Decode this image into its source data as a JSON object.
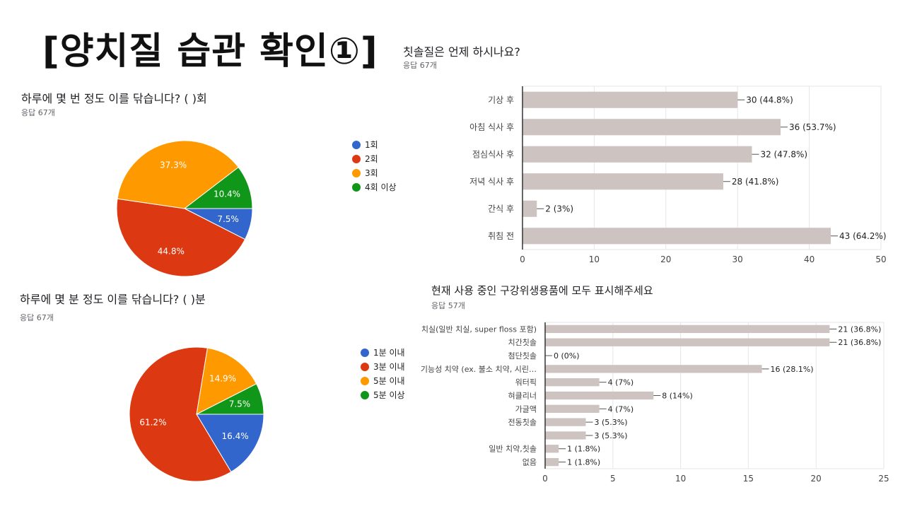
{
  "page_title": "[양치질 습관 확인①]",
  "chart_data": [
    {
      "type": "pie",
      "title": "하루에 몇 번 정도 이를 닦습니다? ( )회",
      "subtitle": "응답 67개",
      "categories": [
        "1회",
        "2회",
        "3회",
        "4회 이상"
      ],
      "values": [
        7.5,
        44.8,
        37.3,
        10.4
      ],
      "labels": [
        "7.5%",
        "44.8%",
        "37.3%",
        "10.4%"
      ],
      "colors": [
        "#3366cc",
        "#dc3912",
        "#ff9900",
        "#109618"
      ],
      "legend": "right"
    },
    {
      "type": "pie",
      "title": "하루에 몇 분 정도 이를 닦습니다? ( )분",
      "subtitle": "응답 67개",
      "categories": [
        "1분 이내",
        "3분 이내",
        "5분 이내",
        "5분 이상"
      ],
      "values": [
        16.4,
        61.2,
        14.9,
        7.5
      ],
      "labels": [
        "16.4%",
        "61.2%",
        "14.9%",
        "7.5%"
      ],
      "colors": [
        "#3366cc",
        "#dc3912",
        "#ff9900",
        "#109618"
      ],
      "legend": "right"
    },
    {
      "type": "bar",
      "orientation": "horizontal",
      "title": "칫솔질은 언제 하시나요?",
      "subtitle": "응답 67개",
      "categories": [
        "기상 후",
        "아침 식사 후",
        "점심식사 후",
        "저녁 식사 후",
        "간식 후",
        "취침 전"
      ],
      "values": [
        30,
        36,
        32,
        28,
        2,
        43
      ],
      "labels": [
        "30 (44.8%)",
        "36 (53.7%)",
        "32 (47.8%)",
        "28 (41.8%)",
        "2 (3%)",
        "43 (64.2%)"
      ],
      "xlim": [
        0,
        50
      ],
      "xticks": [
        "0",
        "10",
        "20",
        "30",
        "40",
        "50"
      ],
      "bar_color": "#cdc3c1",
      "grid": true
    },
    {
      "type": "bar",
      "orientation": "horizontal",
      "title": "현재 사용 중인 구강위생용품에 모두 표시해주세요",
      "subtitle": "응답 57개",
      "categories": [
        "치실(일반 치실, super floss 포함)",
        "치간칫솔",
        "첨단칫솔",
        "기능성 치약 (ex. 불소 치약, 시린…",
        "워터픽",
        "혀클리너",
        "가글액",
        "전동칫솔",
        "",
        "일반 치약,칫솔",
        "없음"
      ],
      "values": [
        21,
        21,
        0,
        16,
        4,
        8,
        4,
        3,
        3,
        1,
        1
      ],
      "labels": [
        "21 (36.8%)",
        "21 (36.8%)",
        "0 (0%)",
        "16 (28.1%)",
        "4 (7%)",
        "8 (14%)",
        "4 (7%)",
        "3 (5.3%)",
        "3 (5.3%)",
        "1 (1.8%)",
        "1 (1.8%)"
      ],
      "xlim": [
        0,
        25
      ],
      "xticks": [
        "0",
        "5",
        "10",
        "15",
        "20",
        "25"
      ],
      "bar_color": "#cdc3c1",
      "grid": true
    }
  ]
}
